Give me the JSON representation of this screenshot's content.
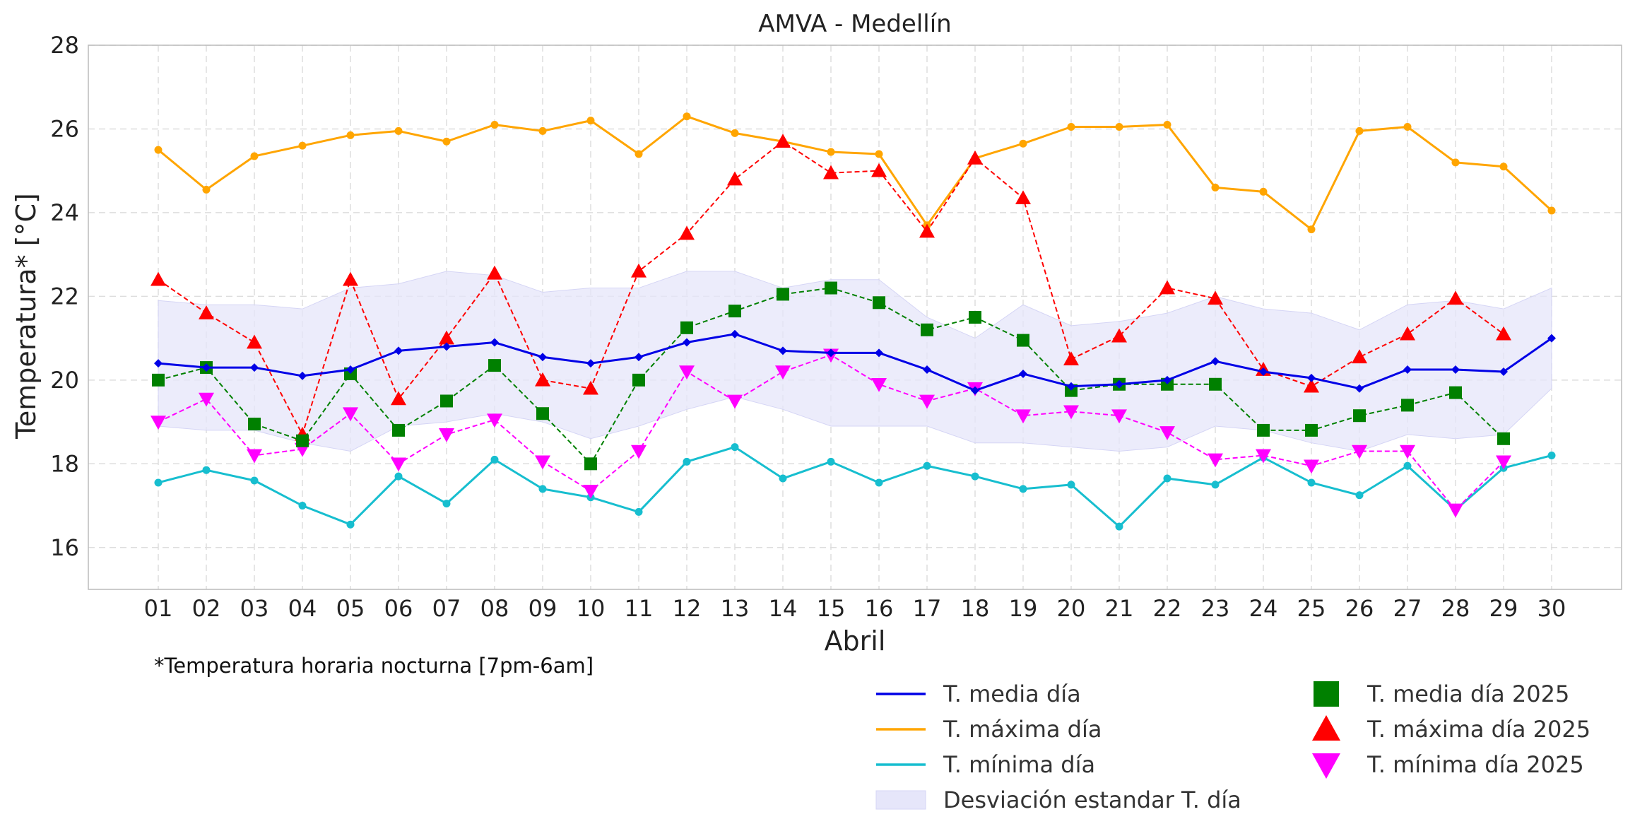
{
  "colors": {
    "mean": "#0000e6",
    "max": "#ffa500",
    "min": "#17becf",
    "mean_2025": "#008000",
    "max_2025": "#ff0000",
    "min_2025": "#ff00ff",
    "band": "#e6e6fa",
    "grid": "#dddddd"
  },
  "chart_data": {
    "type": "line",
    "title": "AMVA - Medellín",
    "xlabel": "Abril",
    "ylabel": "Temperatura* [°C]",
    "note": "*Temperatura horaria nocturna [7pm-6am]",
    "ylim": [
      15,
      28
    ],
    "yticks": [
      16,
      18,
      20,
      22,
      24,
      26,
      28
    ],
    "grid": true,
    "legend_position": "bottom-right",
    "categories": [
      "01",
      "02",
      "03",
      "04",
      "05",
      "06",
      "07",
      "08",
      "09",
      "10",
      "11",
      "12",
      "13",
      "14",
      "15",
      "16",
      "17",
      "18",
      "19",
      "20",
      "21",
      "22",
      "23",
      "24",
      "25",
      "26",
      "27",
      "28",
      "29",
      "30"
    ],
    "series": [
      {
        "name": "T. media día",
        "style": "solid",
        "marker": "diamond",
        "color": "#0000e6",
        "values": [
          20.4,
          20.3,
          20.3,
          20.1,
          20.25,
          20.7,
          20.8,
          20.9,
          20.55,
          20.4,
          20.55,
          20.9,
          21.1,
          20.7,
          20.65,
          20.65,
          20.25,
          19.75,
          20.15,
          19.85,
          19.9,
          20.0,
          20.45,
          20.2,
          20.05,
          19.8,
          20.25,
          20.25,
          20.2,
          21.0
        ]
      },
      {
        "name": "T. máxima día",
        "style": "solid",
        "marker": "circle",
        "color": "#ffa500",
        "values": [
          25.5,
          24.55,
          25.35,
          25.6,
          25.85,
          25.95,
          25.7,
          26.1,
          25.95,
          26.2,
          25.4,
          26.3,
          25.9,
          25.7,
          25.45,
          25.4,
          23.7,
          25.3,
          25.65,
          26.05,
          26.05,
          26.1,
          24.6,
          24.5,
          23.6,
          25.95,
          26.05,
          25.2,
          25.1,
          24.05
        ]
      },
      {
        "name": "T. mínima día",
        "style": "solid",
        "marker": "circle",
        "color": "#17becf",
        "values": [
          17.55,
          17.85,
          17.6,
          17.0,
          16.55,
          17.7,
          17.05,
          18.1,
          17.4,
          17.2,
          16.85,
          18.05,
          18.4,
          17.65,
          18.05,
          17.55,
          17.95,
          17.7,
          17.4,
          17.5,
          16.5,
          17.65,
          17.5,
          18.15,
          17.55,
          17.25,
          17.95,
          16.9,
          17.9,
          18.2
        ]
      },
      {
        "name": "T. media día 2025",
        "style": "dashed",
        "marker": "square",
        "color": "#008000",
        "values": [
          20.0,
          20.3,
          18.95,
          18.55,
          20.15,
          18.8,
          19.5,
          20.35,
          19.2,
          18.0,
          20.0,
          21.25,
          21.65,
          22.05,
          22.2,
          21.85,
          21.2,
          21.5,
          20.95,
          19.75,
          19.9,
          19.9,
          19.9,
          18.8,
          18.8,
          19.15,
          19.4,
          19.7,
          18.6,
          null
        ]
      },
      {
        "name": "T. máxima día 2025",
        "style": "dashed",
        "marker": "triangle-up",
        "color": "#ff0000",
        "values": [
          22.4,
          21.6,
          20.9,
          18.7,
          22.4,
          19.55,
          21.0,
          22.55,
          20.0,
          19.8,
          22.6,
          23.5,
          24.8,
          25.7,
          24.95,
          25.0,
          23.55,
          25.3,
          24.35,
          20.5,
          21.05,
          22.2,
          21.95,
          20.25,
          19.85,
          20.55,
          21.1,
          21.95,
          21.1,
          null
        ]
      },
      {
        "name": "T. mínima día 2025",
        "style": "dashed",
        "marker": "triangle-down",
        "color": "#ff00ff",
        "values": [
          19.0,
          19.55,
          18.2,
          18.35,
          19.2,
          18.0,
          18.7,
          19.05,
          18.05,
          17.35,
          18.3,
          20.2,
          19.5,
          20.2,
          20.6,
          19.9,
          19.5,
          19.8,
          19.15,
          19.25,
          19.15,
          18.75,
          18.1,
          18.2,
          17.95,
          18.3,
          18.3,
          16.9,
          18.05,
          null
        ]
      }
    ],
    "band": {
      "name": "Desviación estandar T. día",
      "upper": [
        21.9,
        21.8,
        21.8,
        21.7,
        22.2,
        22.3,
        22.6,
        22.5,
        22.1,
        22.2,
        22.2,
        22.6,
        22.6,
        22.2,
        22.4,
        22.4,
        21.5,
        21.0,
        21.8,
        21.3,
        21.4,
        21.6,
        22.0,
        21.7,
        21.6,
        21.2,
        21.8,
        21.9,
        21.7,
        22.2
      ],
      "lower": [
        18.9,
        18.8,
        18.8,
        18.5,
        18.3,
        18.9,
        19.0,
        19.2,
        19.0,
        18.6,
        18.9,
        19.3,
        19.6,
        19.3,
        18.9,
        18.9,
        18.9,
        18.5,
        18.5,
        18.4,
        18.3,
        18.4,
        18.9,
        18.8,
        18.5,
        18.3,
        18.7,
        18.6,
        18.7,
        19.8
      ]
    },
    "legend": {
      "left": [
        {
          "label": "T. media día",
          "kind": "line",
          "color": "#0000e6"
        },
        {
          "label": "T. máxima día",
          "kind": "line",
          "color": "#ffa500"
        },
        {
          "label": "T. mínima día",
          "kind": "line",
          "color": "#17becf"
        },
        {
          "label": "Desviación estandar T. día",
          "kind": "patch",
          "color": "#e6e6fa"
        }
      ],
      "right": [
        {
          "label": "T. media día 2025",
          "kind": "square",
          "color": "#008000"
        },
        {
          "label": "T. máxima día 2025",
          "kind": "triangle-up",
          "color": "#ff0000"
        },
        {
          "label": "T. mínima día 2025",
          "kind": "triangle-down",
          "color": "#ff00ff"
        }
      ]
    }
  }
}
